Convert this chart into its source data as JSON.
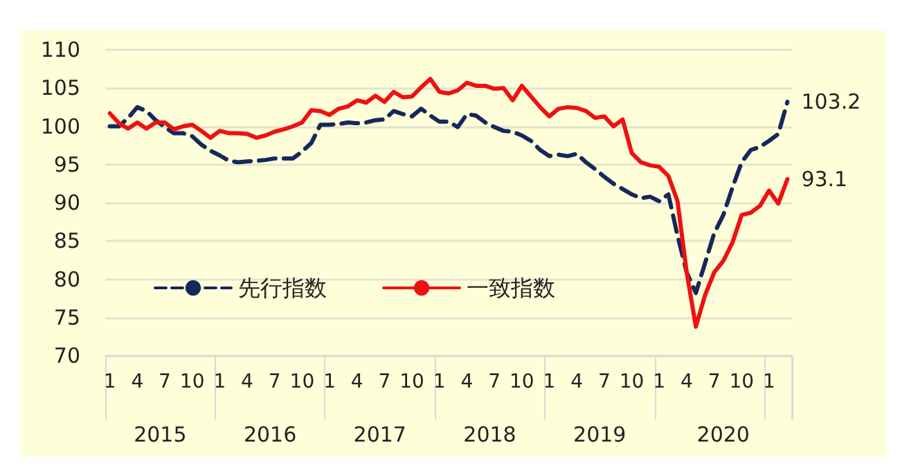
{
  "chart_data": {
    "type": "line",
    "categories": [
      "1",
      null,
      null,
      "4",
      null,
      null,
      "7",
      null,
      null,
      "10",
      null,
      null,
      "1",
      null,
      null,
      "4",
      null,
      null,
      "7",
      null,
      null,
      "10",
      null,
      null,
      "1",
      null,
      null,
      "4",
      null,
      null,
      "7",
      null,
      null,
      "10",
      null,
      null,
      "1",
      null,
      null,
      "4",
      null,
      null,
      "7",
      null,
      null,
      "10",
      null,
      null,
      "1",
      null,
      null,
      "4",
      null,
      null,
      "7",
      null,
      null,
      "10",
      null,
      null,
      "1",
      null,
      null,
      "4",
      null,
      null,
      "7",
      null,
      null,
      "10",
      null,
      null,
      "1",
      null,
      null
    ],
    "annotations": [
      "2015",
      "2016",
      "2017",
      "2018",
      "2019",
      "2020"
    ],
    "series": [
      {
        "name": "先行指数",
        "color": "#14285a",
        "line_style": "dashed",
        "values": [
          100.0,
          100.0,
          101.1,
          102.5,
          102.0,
          100.8,
          99.9,
          99.1,
          99.1,
          98.7,
          97.6,
          96.8,
          96.2,
          95.5,
          95.3,
          95.4,
          95.5,
          95.6,
          95.8,
          95.8,
          95.8,
          96.7,
          97.8,
          100.2,
          100.2,
          100.3,
          100.5,
          100.4,
          100.5,
          100.8,
          100.9,
          102.0,
          101.6,
          101.3,
          102.3,
          101.4,
          100.6,
          100.6,
          99.9,
          101.6,
          101.4,
          100.5,
          99.9,
          99.4,
          99.3,
          98.8,
          98.1,
          96.9,
          96.1,
          96.3,
          96.1,
          96.4,
          95.3,
          94.4,
          93.4,
          92.5,
          91.8,
          91.1,
          90.6,
          90.8,
          90.2,
          91.1,
          85.7,
          80.9,
          78.2,
          82.1,
          86.0,
          88.4,
          92.0,
          95.3,
          96.9,
          97.3,
          98.1,
          99.0,
          103.2
        ],
        "value_labels": [
          null,
          null,
          null,
          null,
          null,
          null,
          null,
          null,
          null,
          null,
          null,
          null,
          null,
          null,
          null,
          null,
          null,
          null,
          null,
          null,
          null,
          null,
          null,
          null,
          null,
          null,
          null,
          null,
          null,
          null,
          null,
          null,
          null,
          null,
          null,
          null,
          null,
          null,
          null,
          null,
          null,
          null,
          null,
          null,
          null,
          null,
          null,
          null,
          null,
          null,
          null,
          null,
          null,
          null,
          null,
          null,
          null,
          null,
          null,
          null,
          null,
          null,
          null,
          null,
          null,
          null,
          null,
          null,
          null,
          null,
          null,
          null,
          null,
          null,
          "103.2"
        ]
      },
      {
        "name": "一致指数",
        "color": "#ee1111",
        "line_style": "solid",
        "values": [
          101.7,
          100.4,
          99.7,
          100.5,
          99.7,
          100.5,
          100.5,
          99.6,
          100.0,
          100.2,
          99.4,
          98.5,
          99.4,
          99.1,
          99.1,
          99.0,
          98.5,
          98.8,
          99.3,
          99.6,
          100.0,
          100.5,
          102.1,
          102.0,
          101.5,
          102.3,
          102.6,
          103.4,
          103.1,
          104.0,
          103.2,
          104.5,
          103.8,
          103.9,
          105.1,
          106.2,
          104.5,
          104.3,
          104.7,
          105.7,
          105.3,
          105.3,
          104.9,
          105.0,
          103.4,
          105.3,
          103.9,
          102.5,
          101.3,
          102.3,
          102.5,
          102.4,
          102.0,
          101.1,
          101.3,
          100.0,
          100.9,
          96.5,
          95.3,
          94.9,
          94.7,
          93.5,
          90.2,
          80.9,
          73.8,
          77.9,
          80.9,
          82.4,
          84.8,
          88.4,
          88.7,
          89.6,
          91.6,
          89.9,
          93.1
        ],
        "value_labels": [
          null,
          null,
          null,
          null,
          null,
          null,
          null,
          null,
          null,
          null,
          null,
          null,
          null,
          null,
          null,
          null,
          null,
          null,
          null,
          null,
          null,
          null,
          null,
          null,
          null,
          null,
          null,
          null,
          null,
          null,
          null,
          null,
          null,
          null,
          null,
          null,
          null,
          null,
          null,
          null,
          null,
          null,
          null,
          null,
          null,
          null,
          null,
          null,
          null,
          null,
          null,
          null,
          null,
          null,
          null,
          null,
          null,
          null,
          null,
          null,
          null,
          null,
          null,
          null,
          null,
          null,
          null,
          null,
          null,
          null,
          null,
          null,
          null,
          null,
          "93.1"
        ]
      }
    ],
    "ylim": [
      70,
      110
    ],
    "yticks": [
      70,
      75,
      80,
      85,
      90,
      95,
      100,
      105,
      110
    ],
    "grid": "y",
    "legend": "bottom left",
    "marker": "none"
  }
}
